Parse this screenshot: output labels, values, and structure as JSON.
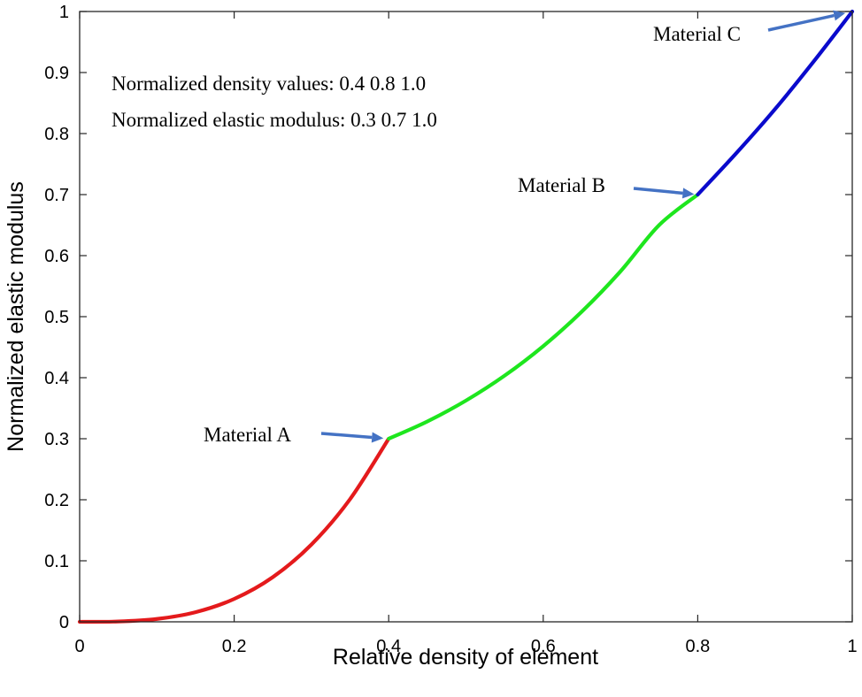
{
  "chart_data": {
    "type": "line",
    "title": "",
    "xlabel": "Relative density of element",
    "ylabel": "Normalized elastic modulus",
    "xlim": [
      0,
      1
    ],
    "ylim": [
      0,
      1
    ],
    "x_ticks": [
      "0",
      "0.2",
      "0.4",
      "0.6",
      "0.8",
      "1"
    ],
    "x_tick_values": [
      0,
      0.2,
      0.4,
      0.6,
      0.8,
      1
    ],
    "y_ticks": [
      "0",
      "0.1",
      "0.2",
      "0.3",
      "0.4",
      "0.5",
      "0.6",
      "0.7",
      "0.8",
      "0.9",
      "1"
    ],
    "y_tick_values": [
      0,
      0.1,
      0.2,
      0.3,
      0.4,
      0.5,
      0.6,
      0.7,
      0.8,
      0.9,
      1
    ],
    "series": [
      {
        "name": "Material A segment",
        "color": "#e41a1c",
        "x": [
          0,
          0.05,
          0.1,
          0.15,
          0.2,
          0.25,
          0.3,
          0.35,
          0.4
        ],
        "y": [
          0,
          0.0005,
          0.0047,
          0.0158,
          0.0375,
          0.0732,
          0.1266,
          0.201,
          0.3
        ]
      },
      {
        "name": "Material B segment",
        "color": "#1ee61e",
        "x": [
          0.4,
          0.45,
          0.5,
          0.55,
          0.6,
          0.65,
          0.7,
          0.75,
          0.8
        ],
        "y": [
          0.3,
          0.3283,
          0.3625,
          0.4033,
          0.4517,
          0.5083,
          0.5742,
          0.65,
          0.7
        ]
      },
      {
        "name": "Material C segment",
        "color": "#0a0acc",
        "x": [
          0.8,
          0.85,
          0.9,
          0.95,
          1.0
        ],
        "y": [
          0.7,
          0.768,
          0.84,
          0.918,
          1.0
        ]
      }
    ],
    "annotations": [
      {
        "label": "Material A",
        "x": 0.4,
        "y": 0.3
      },
      {
        "label": "Material B",
        "x": 0.8,
        "y": 0.7
      },
      {
        "label": "Material C",
        "x": 1.0,
        "y": 1.0
      }
    ],
    "notes": [
      "Normalized density values: 0.4 0.8 1.0",
      "Normalized elastic modulus: 0.3 0.7 1.0"
    ],
    "arrow_color": "#4472c4",
    "grid": false
  }
}
